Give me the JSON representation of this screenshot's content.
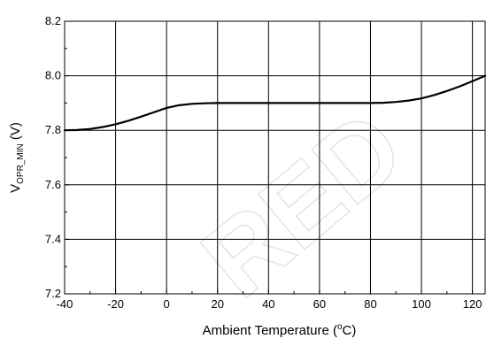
{
  "chart_data": {
    "type": "line",
    "title": "",
    "xlabel": {
      "main": "Ambient Temperature (",
      "sup": "o",
      "end": "C)"
    },
    "ylabel": {
      "main": "V",
      "sub": "OPR_MIN",
      "end": " (V)"
    },
    "xlim": [
      -40,
      125
    ],
    "ylim": [
      7.2,
      8.2
    ],
    "xticks": [
      -40,
      -20,
      0,
      20,
      40,
      60,
      80,
      100,
      120
    ],
    "yticks": [
      7.2,
      7.4,
      7.6,
      7.8,
      8.0,
      8.2
    ],
    "xtick_labels": [
      "-40",
      "-20",
      "0",
      "20",
      "40",
      "60",
      "80",
      "100",
      "120"
    ],
    "ytick_labels": [
      "7.2",
      "7.4",
      "7.6",
      "7.8",
      "8.0",
      "8.2"
    ],
    "grid": true,
    "minor_yticks": true,
    "series": [
      {
        "color": "#000000",
        "x": [
          -40,
          -35,
          -30,
          -25,
          -20,
          -15,
          -10,
          -5,
          0,
          5,
          10,
          15,
          20,
          40,
          60,
          80,
          85,
          90,
          95,
          100,
          105,
          110,
          115,
          120,
          125
        ],
        "y": [
          7.8,
          7.801,
          7.805,
          7.812,
          7.822,
          7.835,
          7.85,
          7.866,
          7.882,
          7.892,
          7.897,
          7.899,
          7.9,
          7.9,
          7.9,
          7.9,
          7.901,
          7.904,
          7.909,
          7.917,
          7.929,
          7.944,
          7.961,
          7.98,
          8.0
        ]
      }
    ]
  },
  "watermark": {
    "text": "RED",
    "color": "#000000"
  }
}
